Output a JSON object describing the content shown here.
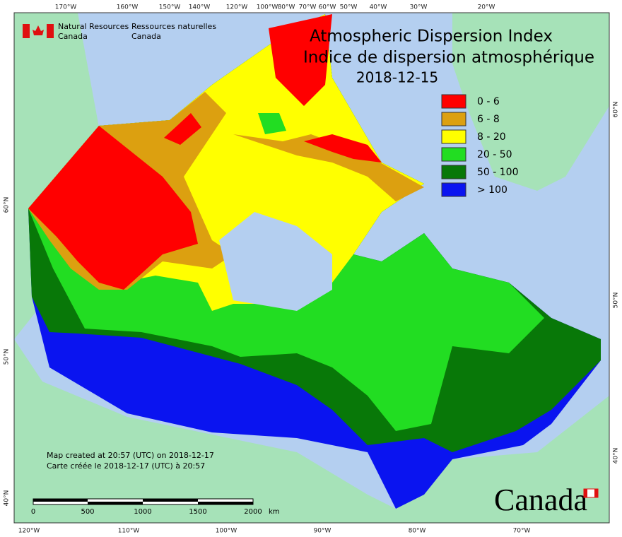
{
  "header": {
    "logo_en": [
      "Natural Resources",
      "Canada"
    ],
    "logo_fr": [
      "Ressources naturelles",
      "Canada"
    ]
  },
  "title": {
    "line1": "Atmospheric Dispersion Index",
    "line2": "Indice de dispersion atmosphérique",
    "date": "2018-12-15"
  },
  "legend": {
    "items": [
      {
        "label": "0 - 6",
        "color": "#ff0000"
      },
      {
        "label": "6 - 8",
        "color": "#dca010"
      },
      {
        "label": "8 - 20",
        "color": "#ffff00"
      },
      {
        "label": "20 - 50",
        "color": "#22dd22"
      },
      {
        "label": "50 - 100",
        "color": "#087808"
      },
      {
        "label": "> 100",
        "color": "#0a14f0"
      }
    ]
  },
  "footer": {
    "created_en": "Map created at 20:57 (UTC) on 2018-12-17",
    "created_fr": "Carte créée le 2018-12-17 (UTC) à 20:57"
  },
  "scale_bar": {
    "labels": [
      "0",
      "500",
      "1000",
      "1500",
      "2000"
    ],
    "unit": "km"
  },
  "graticule": {
    "top": [
      "170°W",
      "160°W",
      "150°W",
      "140°W",
      "120°W",
      "100°W",
      "80°W",
      "70°W",
      "60°W",
      "50°W",
      "40°W",
      "30°W",
      "20°W"
    ],
    "bottom": [
      "120°W",
      "110°W",
      "100°W",
      "90°W",
      "80°W",
      "70°W"
    ],
    "left": [
      "60°N",
      "50°N",
      "40°N"
    ],
    "right": [
      "60°N",
      "50°N",
      "40°N"
    ]
  },
  "wordmark": "Canada"
}
